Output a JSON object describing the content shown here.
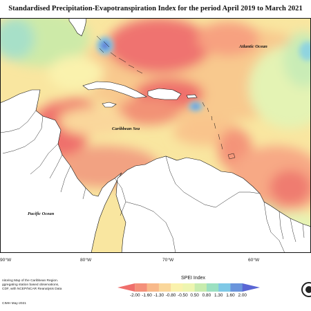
{
  "title": "Standardised Precipitation-Evapotranspiration Index for the period April 2019 to March 2021",
  "labels": {
    "atlantic": "Atlantic Ocean",
    "caribbean": "Caribbean Sea",
    "pacific": "Pacific Ocean"
  },
  "longitudes": [
    "90°W",
    "80°W",
    "70°W",
    "60°W"
  ],
  "footer": {
    "lines": [
      "nitoring Map of the Caribbean Region.",
      "ggregating station based observations,",
      "CDF, with NCEP/NCAR Reanalysis Data"
    ],
    "credit": "CIMH May-2021"
  },
  "legend": {
    "title": "SPEI Index",
    "ticks": [
      "-2.00",
      "-1.60",
      "-1.30",
      "-0.80",
      "-0.50",
      "0.50",
      "0.80",
      "1.30",
      "1.60",
      "2.00"
    ],
    "colors": [
      "#ef6f6c",
      "#f4907a",
      "#f8b98a",
      "#fad79b",
      "#faf2ad",
      "#eef5b0",
      "#c8ecae",
      "#9be0c1",
      "#7fc8e6",
      "#6a95dc",
      "#5a66d4"
    ]
  },
  "colors": {
    "land": "#ffffff",
    "border": "#111111",
    "very_dry": "#ef6f6c",
    "dry": "#f8b98a",
    "near_normal": "#faf0ad",
    "wet": "#9be0c1",
    "very_wet": "#5a66d4"
  }
}
